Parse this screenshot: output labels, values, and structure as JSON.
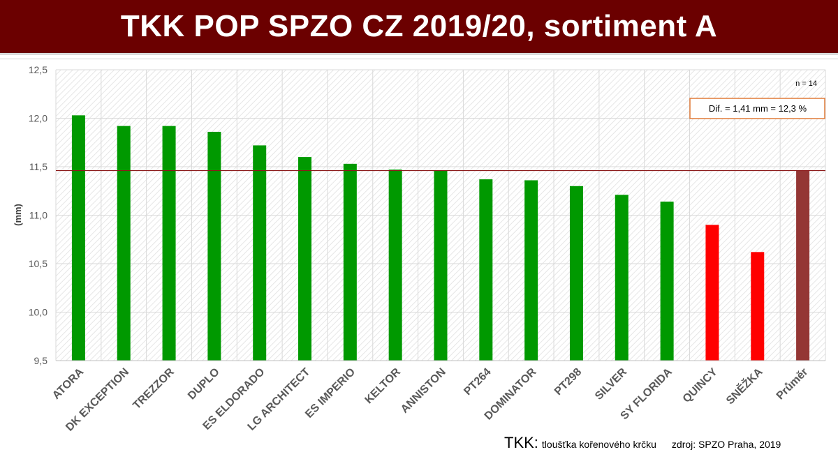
{
  "header": {
    "title": "TKK POP SPZO CZ 2019/20, sortiment A"
  },
  "footer": {
    "abbr": "TKK:",
    "definition": "tloušťka kořenového krčku",
    "source": "zdroj: SPZO Praha, 2019"
  },
  "colors": {
    "banner": "#6b0000",
    "green": "#009900",
    "red": "#ff0000",
    "average": "#943634",
    "reference_line": "#8b1a1a",
    "annotation_border": "#e07b39"
  },
  "chart_data": {
    "type": "bar",
    "title": "",
    "xlabel": "",
    "ylabel": "(mm)",
    "ylim": [
      9.5,
      12.5
    ],
    "yticks": [
      "9,5",
      "10,0",
      "10,5",
      "11,0",
      "11,5",
      "12,0",
      "12,5"
    ],
    "ytick_values": [
      9.5,
      10.0,
      10.5,
      11.0,
      11.5,
      12.0,
      12.5
    ],
    "grid": true,
    "categories": [
      "ATORA",
      "DK EXCEPTION",
      "TREZZOR",
      "DUPLO",
      "ES ELDORADO",
      "LG ARCHITECT",
      "ES IMPERIO",
      "KELTOR",
      "ANNISTON",
      "PT264",
      "DOMINATOR",
      "PT298",
      "SILVER",
      "SY FLORIDA",
      "QUINCY",
      "SNĚŽKA",
      "Průměr"
    ],
    "values": [
      12.03,
      11.92,
      11.92,
      11.86,
      11.72,
      11.6,
      11.53,
      11.47,
      11.46,
      11.37,
      11.36,
      11.3,
      11.21,
      11.14,
      10.9,
      10.62,
      11.46
    ],
    "bar_colors": [
      "green",
      "green",
      "green",
      "green",
      "green",
      "green",
      "green",
      "green",
      "green",
      "green",
      "green",
      "green",
      "green",
      "green",
      "red",
      "red",
      "average"
    ],
    "reference_line_value": 11.46,
    "annotations": {
      "n": "n = 14",
      "dif": "Dif. = 1,41 mm = 12,3 %"
    }
  }
}
